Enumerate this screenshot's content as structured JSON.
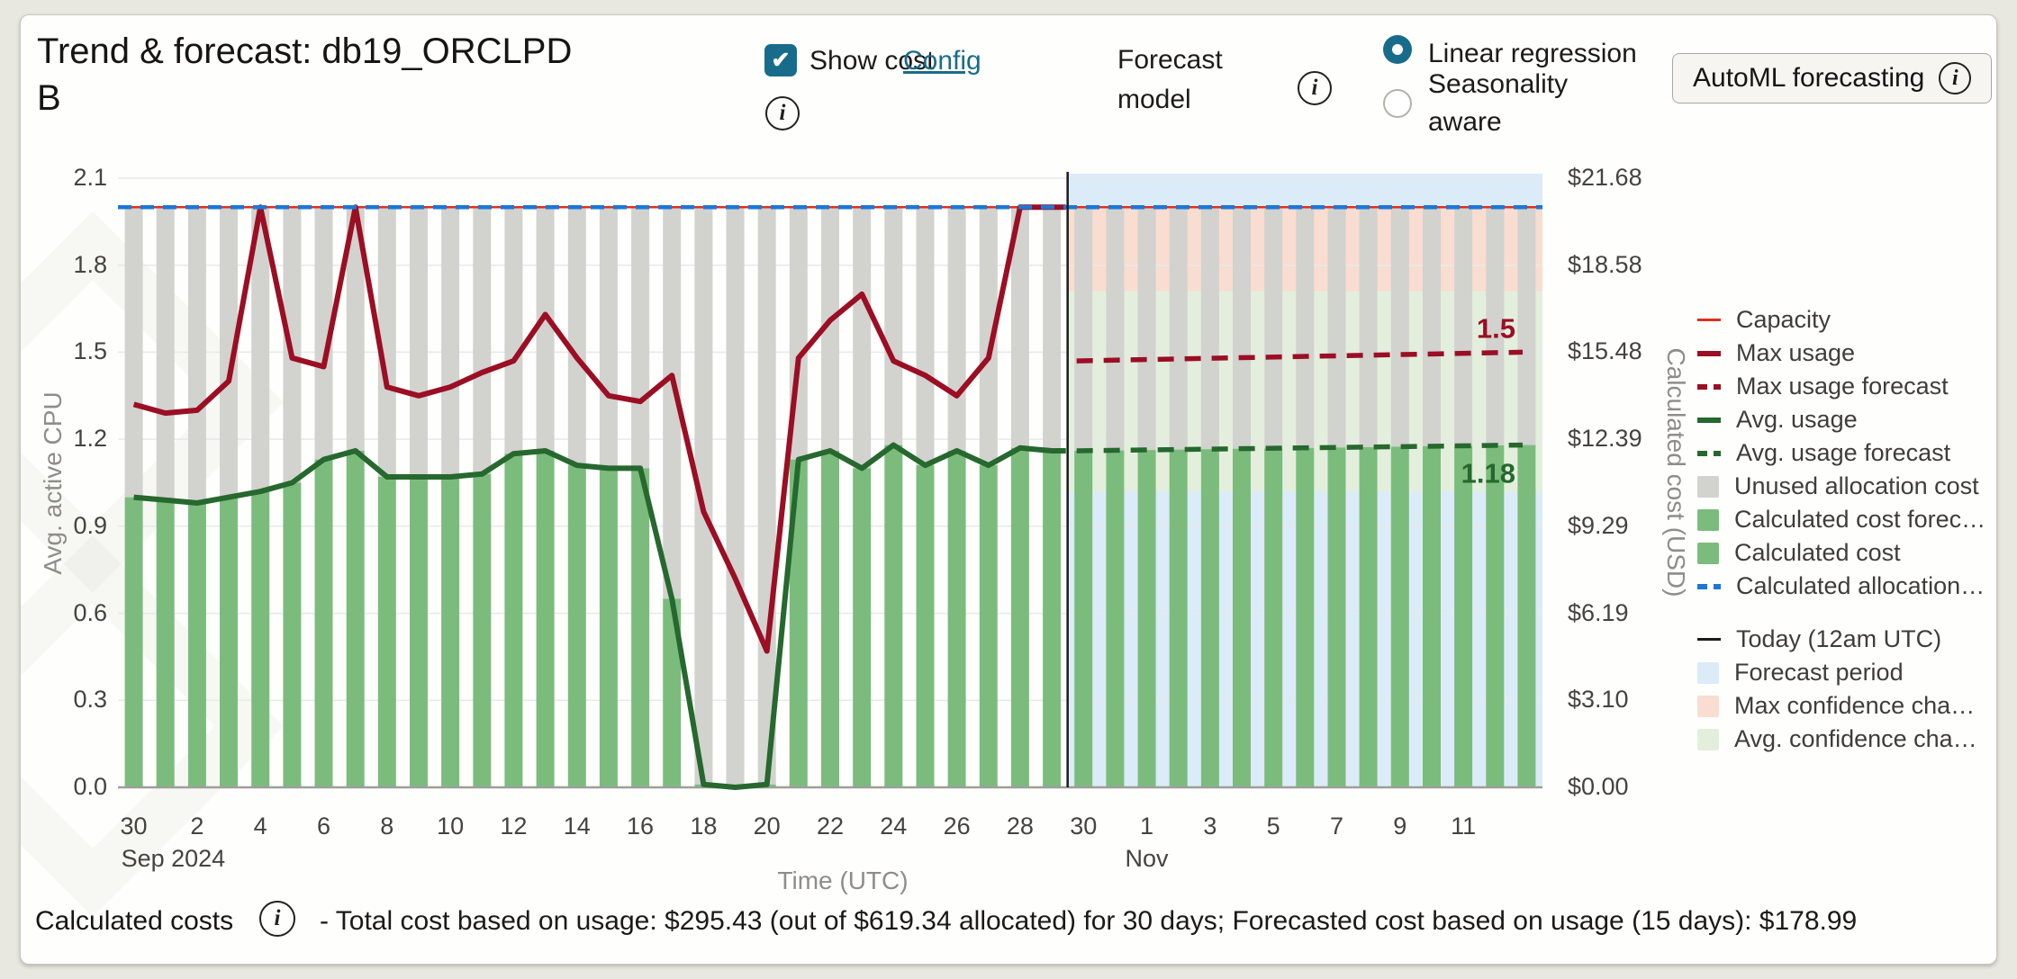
{
  "header": {
    "title": "Trend & forecast: db19_ORCLPDB",
    "show_cost_label": "Show cost",
    "show_cost_checked": true,
    "check_glyph": "✔",
    "info_glyph": "i",
    "config_label": "Config",
    "forecast_model_label": "Forecast model",
    "radio_options": [
      {
        "label": "Linear regression",
        "selected": true
      },
      {
        "label": "Seasonality aware",
        "selected": false
      }
    ],
    "automl_button_label": "AutoML forecasting"
  },
  "chart_data": {
    "type": "combo-bar-line",
    "title": "Trend & forecast: db19_ORCLPDB",
    "x_axis": {
      "title": "Time (UTC)",
      "tick_labels": [
        "30",
        "2",
        "4",
        "6",
        "8",
        "10",
        "12",
        "14",
        "16",
        "18",
        "20",
        "22",
        "24",
        "26",
        "28",
        "30",
        "1",
        "3",
        "5",
        "7",
        "9",
        "11"
      ],
      "month_labels": [
        {
          "label": "Sep 2024",
          "day": 0,
          "align": "left"
        },
        {
          "label": "Nov",
          "day": 32,
          "align": "center"
        }
      ]
    },
    "y_left": {
      "title": "Avg. active CPU",
      "tick_labels": [
        "2.1",
        "1.8",
        "1.5",
        "1.2",
        "0.9",
        "0.6",
        "0.3",
        "0.0"
      ],
      "min": 0,
      "max": 2.1
    },
    "y_right": {
      "title": "Calculated cost (USD)",
      "tick_labels": [
        "$21.68",
        "$18.58",
        "$15.48",
        "$12.39",
        "$9.29",
        "$6.19",
        "$3.10",
        "$0.00"
      ]
    },
    "capacity": 2.0,
    "history": {
      "start_label": "Sep 2024 30",
      "max_usage": [
        1.32,
        1.29,
        1.3,
        1.4,
        2.0,
        1.48,
        1.45,
        2.0,
        1.38,
        1.35,
        1.38,
        1.43,
        1.47,
        1.63,
        1.48,
        1.35,
        1.33,
        1.42,
        0.95,
        0.72,
        0.47,
        1.48,
        1.61,
        1.7,
        1.47,
        1.42,
        1.35,
        1.48,
        2.0,
        2.0,
        2.0
      ],
      "avg_usage": [
        1.0,
        0.99,
        0.98,
        1.0,
        1.02,
        1.05,
        1.13,
        1.16,
        1.07,
        1.07,
        1.07,
        1.08,
        1.15,
        1.16,
        1.11,
        1.1,
        1.1,
        0.65,
        0.01,
        0.0,
        0.01,
        1.13,
        1.16,
        1.1,
        1.18,
        1.11,
        1.16,
        1.11,
        1.17,
        1.16,
        1.16
      ]
    },
    "forecast": {
      "days": 15,
      "max_usage_forecast": {
        "start": 1.47,
        "end": 1.5,
        "end_label": "1.5"
      },
      "avg_usage_forecast": {
        "start": 1.16,
        "end": 1.18,
        "end_label": "1.18"
      },
      "max_confidence_band": [
        1.71,
        2.0
      ],
      "avg_confidence_band": [
        1.02,
        1.71
      ]
    },
    "today_line_day": 30,
    "colors": {
      "capacity": "#e0301e",
      "max_usage": "#9b0e23",
      "avg_usage": "#26682e",
      "allocation": "#1b78d8",
      "unused_bar": "#d2d2cf",
      "cost_bar": "#7bbc7d",
      "forecast_period_bg": "#dcebf8",
      "max_confidence_bg": "#f8ddd0",
      "avg_confidence_bg": "#e3efdc",
      "today_line": "#1b1b1a",
      "gridline": "#e7e9ec",
      "baseline": "#9e9e9a"
    }
  },
  "legend": {
    "items": [
      {
        "label": "Capacity",
        "swatch": "line-thin",
        "color": "#e0301e",
        "gap_before": false
      },
      {
        "label": "Max usage",
        "swatch": "line",
        "color": "#9b0e23",
        "gap_before": false
      },
      {
        "label": "Max usage forecast",
        "swatch": "dash",
        "color": "#9b0e23",
        "gap_before": false
      },
      {
        "label": "Avg. usage",
        "swatch": "line",
        "color": "#26682e",
        "gap_before": false
      },
      {
        "label": "Avg. usage forecast",
        "swatch": "dash",
        "color": "#26682e",
        "gap_before": false
      },
      {
        "label": "Unused allocation cost",
        "swatch": "square",
        "color": "#d2d2cf",
        "gap_before": false
      },
      {
        "label": "Calculated cost forec…",
        "swatch": "square",
        "color": "#7bbc7d",
        "gap_before": false
      },
      {
        "label": "Calculated cost",
        "swatch": "square",
        "color": "#7bbc7d",
        "gap_before": false
      },
      {
        "label": "Calculated allocation…",
        "swatch": "dash",
        "color": "#1b78d8",
        "gap_before": false
      },
      {
        "label": "Today (12am UTC)",
        "swatch": "line-thin",
        "color": "#1b1b1a",
        "gap_before": true
      },
      {
        "label": "Forecast period",
        "swatch": "square",
        "color": "#dcebf8",
        "gap_before": false
      },
      {
        "label": "Max confidence cha…",
        "swatch": "square",
        "color": "#f8ddd0",
        "gap_before": false
      },
      {
        "label": "Avg. confidence cha…",
        "swatch": "square",
        "color": "#e3efdc",
        "gap_before": false
      }
    ]
  },
  "footer": {
    "label": "Calculated costs",
    "text": "- Total cost based on usage: $295.43 (out of $619.34 allocated) for 30 days; Forecasted cost based on usage (15 days): $178.99"
  }
}
